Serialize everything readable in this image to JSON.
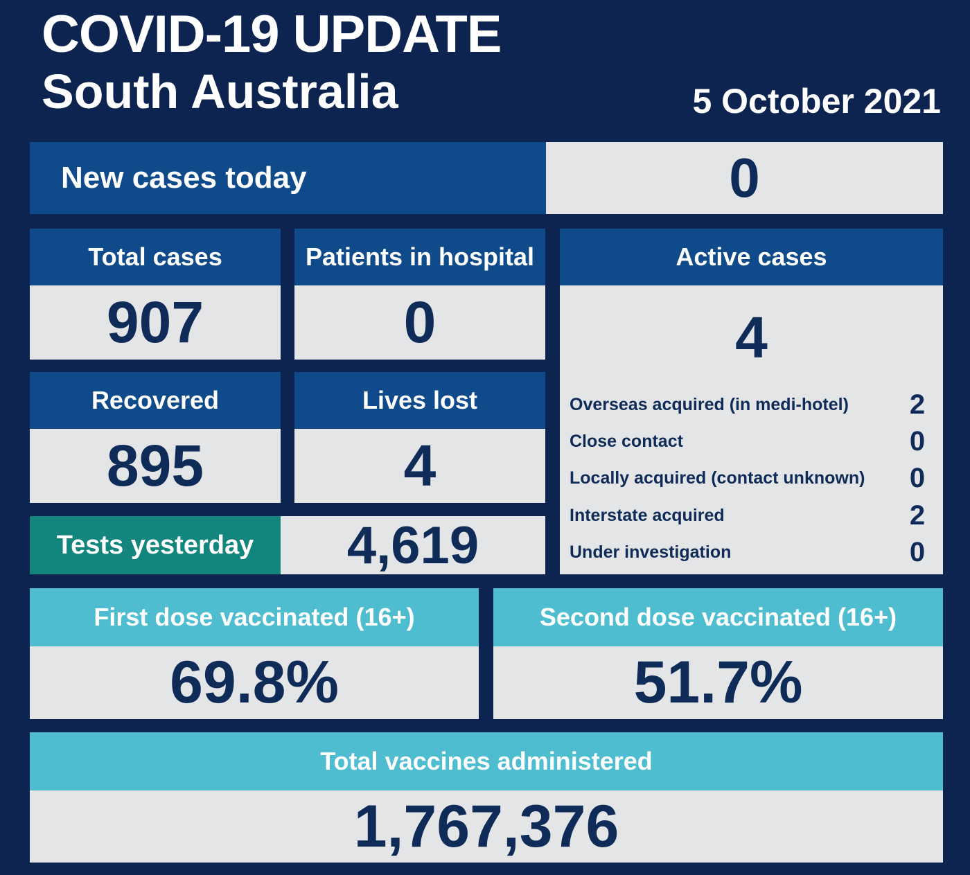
{
  "header": {
    "title": "COVID-19 UPDATE",
    "subtitle": "South Australia",
    "date": "5 October 2021"
  },
  "new_cases": {
    "label": "New cases today",
    "value": "0"
  },
  "total_cases": {
    "label": "Total cases",
    "value": "907"
  },
  "patients_in_hospital": {
    "label": "Patients in hospital",
    "value": "0"
  },
  "recovered": {
    "label": "Recovered",
    "value": "895"
  },
  "lives_lost": {
    "label": "Lives lost",
    "value": "4"
  },
  "tests_yesterday": {
    "label": "Tests yesterday",
    "value": "4,619"
  },
  "active_cases": {
    "label": "Active cases",
    "value": "4",
    "breakdown": [
      {
        "label": "Overseas acquired (in medi-hotel)",
        "value": "2"
      },
      {
        "label": "Close contact",
        "value": "0"
      },
      {
        "label": "Locally acquired (contact unknown)",
        "value": "0"
      },
      {
        "label": "Interstate acquired",
        "value": "2"
      },
      {
        "label": "Under investigation",
        "value": "0"
      }
    ]
  },
  "first_dose": {
    "label": "First dose vaccinated (16+)",
    "value": "69.8%"
  },
  "second_dose": {
    "label": "Second dose vaccinated (16+)",
    "value": "51.7%"
  },
  "total_vaccines": {
    "label": "Total vaccines administered",
    "value": "1,767,376"
  },
  "colors": {
    "background": "#0d2450",
    "header_blue": "#0f4a8a",
    "value_grey": "#e4e5e7",
    "value_text": "#0f2b58",
    "teal_header": "#4fbdd0",
    "tests_green": "#12857d"
  }
}
